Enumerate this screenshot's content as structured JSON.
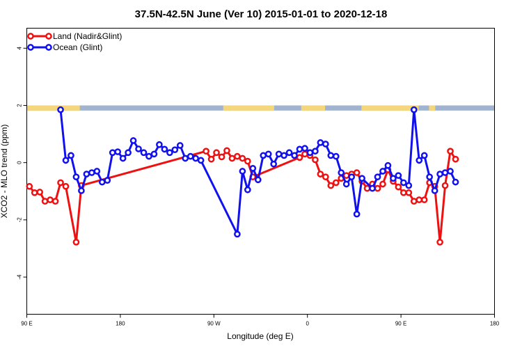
{
  "chart_data": {
    "type": "line",
    "title": "37.5N-42.5N June (Ver 10)   2015-01-01 to 2020-12-18",
    "xlabel": "Longitude (deg E)",
    "ylabel": "XCO2 - MLO trend (ppm)",
    "xlim": [
      90,
      540
    ],
    "ylim": [
      -5.3,
      4.7
    ],
    "x_ticks": [
      {
        "value": 90,
        "label": "90 E"
      },
      {
        "value": 180,
        "label": "180"
      },
      {
        "value": 270,
        "label": "90 W"
      },
      {
        "value": 360,
        "label": "0"
      },
      {
        "value": 450,
        "label": "90 E"
      },
      {
        "value": 540,
        "label": "180"
      }
    ],
    "y_ticks": [
      {
        "value": -4,
        "label": "-4"
      },
      {
        "value": -2,
        "label": "-2"
      },
      {
        "value": 0,
        "label": "0"
      },
      {
        "value": 2,
        "label": "2"
      },
      {
        "value": 4,
        "label": "4"
      }
    ],
    "legend_position": "top-left",
    "grid": false,
    "land_ocean_strip": {
      "y_range": [
        1.82,
        2.0
      ],
      "ocean_color": "#a0b4d0",
      "land_color": "#f5d67a",
      "land_segments": [
        [
          90,
          141
        ],
        [
          279,
          328
        ],
        [
          354,
          377
        ],
        [
          412,
          467
        ],
        [
          477,
          483
        ]
      ]
    },
    "series": [
      {
        "name": "Land (Nadir&Glint)",
        "color": "#ee1111",
        "x": [
          92.5,
          97.5,
          102.5,
          107.5,
          112.5,
          117.5,
          122.5,
          127.5,
          137.5,
          142.5,
          262.5,
          267.5,
          272.5,
          277.5,
          282.5,
          287.5,
          292.5,
          297.5,
          302.5,
          307.5,
          352.5,
          357.5,
          362.5,
          367.5,
          372.5,
          377.5,
          382.5,
          387.5,
          392.5,
          397.5,
          402.5,
          407.5,
          412.5,
          417.5,
          422.5,
          427.5,
          432.5,
          437.5,
          442.5,
          447.5,
          452.5,
          457.5,
          462.5,
          467.5,
          472.5,
          477.5,
          482.5,
          487.5,
          492.5,
          497.5,
          502.5
        ],
        "values": [
          -0.83,
          -1.05,
          -1.03,
          -1.35,
          -1.3,
          -1.35,
          -0.7,
          -0.83,
          -2.78,
          -0.8,
          0.4,
          0.12,
          0.35,
          0.2,
          0.42,
          0.15,
          0.22,
          0.15,
          0.05,
          -0.5,
          0.18,
          0.3,
          0.25,
          0.1,
          -0.4,
          -0.5,
          -0.8,
          -0.7,
          -0.55,
          -0.45,
          -0.4,
          -0.35,
          -0.65,
          -0.9,
          -0.75,
          -0.9,
          -0.75,
          -0.25,
          -0.65,
          -0.85,
          -1.05,
          -1.05,
          -1.35,
          -1.3,
          -1.3,
          -0.7,
          -0.83,
          -2.78,
          -0.8,
          0.4,
          0.12
        ]
      },
      {
        "name": "Ocean (Glint)",
        "color": "#1111ee",
        "x": [
          122.5,
          127.5,
          132.5,
          137.5,
          142.5,
          147.5,
          152.5,
          157.5,
          162.5,
          167.5,
          172.5,
          177.5,
          182.5,
          187.5,
          192.5,
          197.5,
          202.5,
          207.5,
          212.5,
          217.5,
          222.5,
          227.5,
          232.5,
          237.5,
          242.5,
          247.5,
          252.5,
          257.5,
          292.5,
          297.5,
          302.5,
          307.5,
          312.5,
          317.5,
          322.5,
          327.5,
          332.5,
          337.5,
          342.5,
          347.5,
          352.5,
          357.5,
          362.5,
          367.5,
          372.5,
          377.5,
          382.5,
          387.5,
          392.5,
          397.5,
          402.5,
          407.5,
          412.5,
          422.5,
          427.5,
          432.5,
          437.5,
          442.5,
          447.5,
          452.5,
          457.5,
          462.5,
          467.5,
          472.5,
          477.5,
          482.5,
          487.5,
          492.5,
          497.5,
          502.5
        ],
        "values": [
          1.85,
          0.08,
          0.25,
          -0.5,
          -0.98,
          -0.4,
          -0.35,
          -0.3,
          -0.68,
          -0.62,
          0.35,
          0.38,
          0.15,
          0.35,
          0.77,
          0.48,
          0.35,
          0.22,
          0.3,
          0.63,
          0.47,
          0.35,
          0.45,
          0.6,
          0.15,
          0.22,
          0.15,
          0.08,
          -2.5,
          -0.3,
          -0.95,
          -0.2,
          -0.6,
          0.25,
          0.3,
          -0.05,
          0.3,
          0.25,
          0.35,
          0.25,
          0.47,
          0.5,
          0.35,
          0.4,
          0.7,
          0.65,
          0.25,
          0.22,
          -0.35,
          -0.75,
          -0.5,
          -1.8,
          -0.55,
          -0.9,
          -0.5,
          -0.3,
          -0.1,
          -0.55,
          -0.45,
          -0.7,
          -0.8,
          1.85,
          0.08,
          0.25,
          -0.5,
          -0.98,
          -0.4,
          -0.35,
          -0.3,
          -0.68
        ]
      }
    ]
  }
}
